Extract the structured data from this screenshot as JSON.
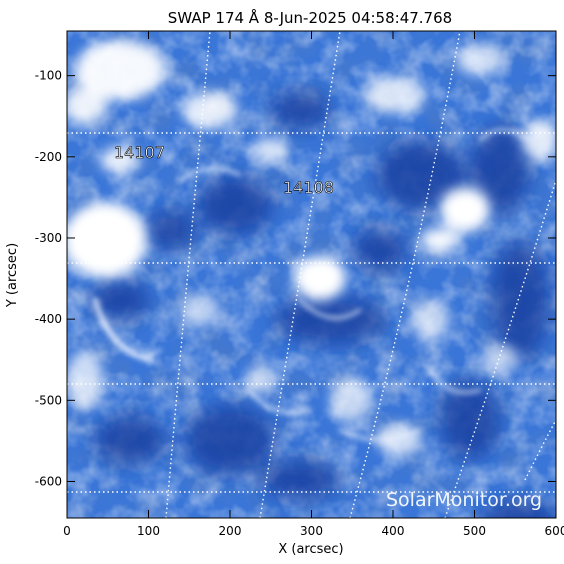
{
  "title": "SWAP 174 Å  8-Jun-2025 04:58:47.768",
  "x_axis": {
    "label": "X (arcsec)",
    "range": [
      0,
      600
    ],
    "ticks": [
      0,
      100,
      200,
      300,
      400,
      500,
      600
    ]
  },
  "y_axis": {
    "label": "Y (arcsec)",
    "range": [
      -645,
      -45
    ],
    "ticks": [
      -100,
      -200,
      -300,
      -400,
      -500,
      -600
    ]
  },
  "regions": [
    {
      "label": "14107",
      "x": 95,
      "y": -195
    },
    {
      "label": "14108",
      "x": 315,
      "y": -230
    }
  ],
  "watermark": "SolarMonitor.org",
  "colors": {
    "image_base": "#3a76d8",
    "image_dark": "#1a3fa0",
    "image_bright": "#ffffff",
    "grid": "#ffffff",
    "axes": "#000000"
  }
}
